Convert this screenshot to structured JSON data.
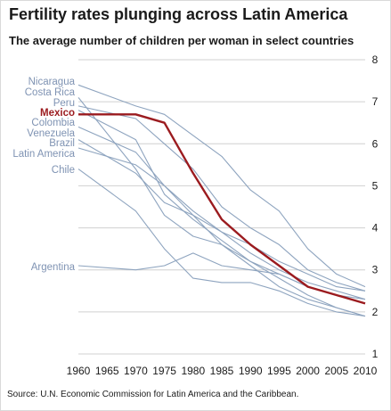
{
  "title": "Fertility rates plunging across Latin America",
  "subtitle": "The average number of children per woman in select countries",
  "source": "Source: U.N. Economic Commission for Latin America and the Caribbean.",
  "colors": {
    "background": "#ffffff",
    "series_default": "#8ea4bf",
    "highlight": "#9b1b1f",
    "label_default": "#7f93b3",
    "grid": "#d0d0d0",
    "text": "#1a1a1a"
  },
  "chart_data": {
    "type": "line",
    "title": "Fertility rates plunging across Latin America",
    "subtitle": "The average number of children per woman in select countries",
    "xlabel": "",
    "ylabel": "",
    "x": [
      1960,
      1970,
      1975,
      1980,
      1985,
      1990,
      1995,
      2000,
      2005,
      2010
    ],
    "ylim": [
      1,
      8
    ],
    "yticks": [
      1,
      2,
      3,
      4,
      5,
      6,
      7,
      8
    ],
    "ytick_labels": [
      "1",
      "2",
      "3",
      "4",
      "5",
      "6",
      "7",
      "8"
    ],
    "xtick_labels": [
      "1960",
      "1965",
      "1970",
      "1975",
      "1980",
      "1985",
      "1990",
      "1995",
      "2000",
      "2005",
      "2010"
    ],
    "grid": "horizontal",
    "y_axis_side": "right",
    "highlight_series": "Mexico",
    "series": [
      {
        "name": "Nicaragua",
        "values": [
          7.4,
          6.9,
          6.7,
          6.2,
          5.7,
          4.9,
          4.4,
          3.5,
          2.9,
          2.6
        ]
      },
      {
        "name": "Costa Rica",
        "values": [
          7.1,
          5.4,
          4.3,
          3.8,
          3.6,
          3.2,
          2.8,
          2.4,
          2.1,
          1.9
        ]
      },
      {
        "name": "Peru",
        "values": [
          6.9,
          6.6,
          6.0,
          5.4,
          4.5,
          4.0,
          3.6,
          3.0,
          2.7,
          2.5
        ]
      },
      {
        "name": "Mexico",
        "values": [
          6.7,
          6.7,
          6.5,
          5.3,
          4.2,
          3.6,
          3.1,
          2.6,
          2.4,
          2.2
        ]
      },
      {
        "name": "Colombia",
        "values": [
          6.8,
          6.1,
          4.8,
          4.2,
          3.7,
          3.2,
          2.9,
          2.6,
          2.4,
          2.2
        ]
      },
      {
        "name": "Venezuela",
        "values": [
          6.4,
          5.8,
          5.0,
          4.3,
          3.9,
          3.6,
          3.2,
          2.9,
          2.6,
          2.5
        ]
      },
      {
        "name": "Brazil",
        "values": [
          6.1,
          5.3,
          4.6,
          4.3,
          3.6,
          3.1,
          2.6,
          2.3,
          2.1,
          1.9
        ]
      },
      {
        "name": "Latin America",
        "values": [
          5.9,
          5.5,
          5.0,
          4.4,
          3.9,
          3.4,
          3.0,
          2.7,
          2.5,
          2.3
        ]
      },
      {
        "name": "Chile",
        "values": [
          5.4,
          4.4,
          3.5,
          2.8,
          2.7,
          2.7,
          2.5,
          2.2,
          2.0,
          1.9
        ]
      },
      {
        "name": "Argentina",
        "values": [
          3.1,
          3.0,
          3.1,
          3.4,
          3.1,
          3.0,
          2.9,
          2.6,
          2.4,
          2.3
        ]
      }
    ]
  }
}
